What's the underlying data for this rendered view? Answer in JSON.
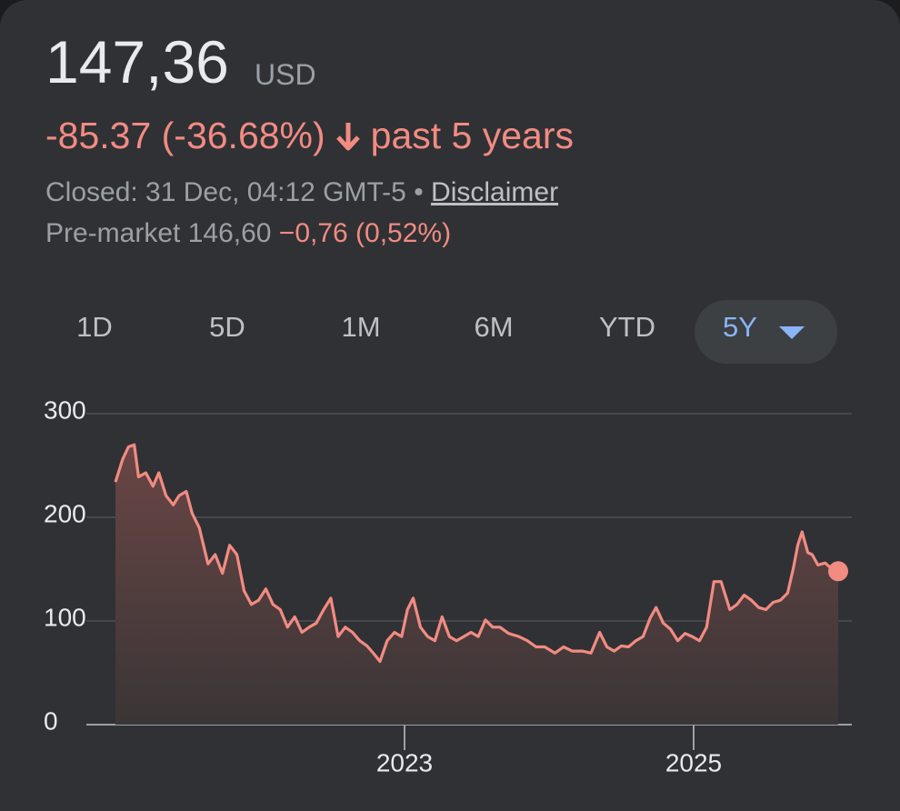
{
  "header": {
    "price": "147,36",
    "currency": "USD",
    "change": "-85.37 (-36.68%)",
    "period": "past 5 years",
    "status": "Closed: 31 Dec, 04:12 GMT-5 •",
    "disclaimer": "Disclaimer",
    "premarket": "Pre-market 146,60",
    "premarket_change": "−0,76 (0,52%)"
  },
  "tabs": [
    "1D",
    "5D",
    "1M",
    "6M",
    "YTD",
    "5Y"
  ],
  "chart_data": {
    "type": "line",
    "color": "#f28b82",
    "x": [
      2021.0,
      2021.05,
      2021.09,
      2021.13,
      2021.16,
      2021.21,
      2021.26,
      2021.3,
      2021.35,
      2021.4,
      2021.44,
      2021.49,
      2021.53,
      2021.58,
      2021.64,
      2021.69,
      2021.74,
      2021.79,
      2021.84,
      2021.89,
      2021.94,
      2021.99,
      2022.04,
      2022.09,
      2022.14,
      2022.19,
      2022.24,
      2022.29,
      2022.34,
      2022.39,
      2022.44,
      2022.49,
      2022.54,
      2022.59,
      2022.64,
      2022.69,
      2022.74,
      2022.79,
      2022.83,
      2022.88,
      2022.93,
      2022.98,
      2023.02,
      2023.06,
      2023.11,
      2023.16,
      2023.21,
      2023.26,
      2023.31,
      2023.36,
      2023.41,
      2023.46,
      2023.51,
      2023.56,
      2023.61,
      2023.66,
      2023.72,
      2023.79,
      2023.85,
      2023.91,
      2023.97,
      2024.04,
      2024.1,
      2024.16,
      2024.23,
      2024.29,
      2024.35,
      2024.4,
      2024.45,
      2024.5,
      2024.55,
      2024.6,
      2024.65,
      2024.7,
      2024.74,
      2024.79,
      2024.84,
      2024.89,
      2024.94,
      2024.99,
      2025.04,
      2025.09,
      2025.14,
      2025.19,
      2025.25,
      2025.3,
      2025.35,
      2025.4,
      2025.45,
      2025.5,
      2025.55,
      2025.6,
      2025.65,
      2025.69,
      2025.72,
      2025.75,
      2025.79,
      2025.82,
      2025.86,
      2025.91,
      2025.95,
      2026.0
    ],
    "values": [
      234,
      256,
      268,
      270,
      239,
      243,
      230,
      243,
      221,
      212,
      221,
      225,
      204,
      190,
      155,
      164,
      146,
      173,
      164,
      129,
      116,
      120,
      131,
      116,
      111,
      94,
      104,
      89,
      94,
      98,
      111,
      122,
      85,
      94,
      89,
      81,
      76,
      68,
      61,
      81,
      89,
      85,
      111,
      122,
      94,
      85,
      81,
      104,
      85,
      81,
      85,
      89,
      85,
      101,
      94,
      94,
      88,
      85,
      81,
      75,
      75,
      69,
      75,
      71,
      71,
      69,
      89,
      75,
      71,
      76,
      75,
      81,
      85,
      103,
      113,
      98,
      92,
      81,
      88,
      85,
      81,
      94,
      138,
      138,
      111,
      116,
      125,
      120,
      113,
      111,
      118,
      120,
      127,
      151,
      173,
      186,
      166,
      164,
      154,
      156,
      151,
      148
    ],
    "xlim": [
      2021,
      2026
    ],
    "xticks": [
      2023,
      2025
    ],
    "ylim": [
      0,
      300
    ],
    "yticks": [
      0,
      100,
      200,
      300
    ],
    "grid": true
  }
}
